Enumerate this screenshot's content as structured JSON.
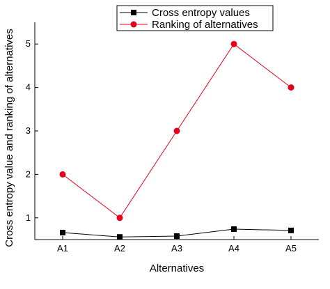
{
  "chart_data": {
    "type": "line",
    "title": "",
    "xlabel": "Alternatives",
    "ylabel": "Cross entropy value and ranking of alternatives",
    "categories": [
      "A1",
      "A2",
      "A3",
      "A4",
      "A5"
    ],
    "y_ticks": [
      1,
      2,
      3,
      4,
      5
    ],
    "ylim": [
      0.5,
      5.5
    ],
    "grid": false,
    "legend_position": "top-center",
    "series": [
      {
        "name": "Cross entropy values",
        "values": [
          0.66,
          0.56,
          0.58,
          0.74,
          0.71
        ],
        "color": "#000000",
        "marker": "square"
      },
      {
        "name": "Ranking of alternatives",
        "values": [
          2,
          1,
          3,
          5,
          4
        ],
        "color": "#e8001a",
        "marker": "circle"
      }
    ]
  }
}
